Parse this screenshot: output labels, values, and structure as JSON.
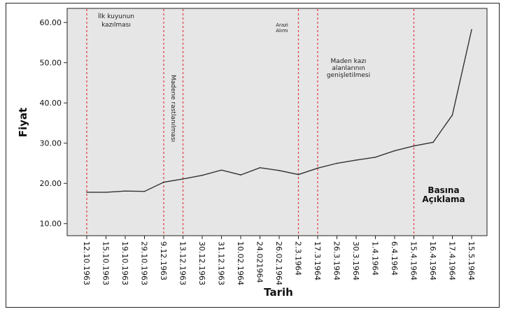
{
  "chart_data": {
    "type": "line",
    "title": "",
    "xlabel": "Tarih",
    "ylabel": "Fiyat",
    "ylim": [
      7,
      63.5
    ],
    "yticks": [
      "10.00",
      "20.00",
      "30.00",
      "40.00",
      "50.00",
      "60.00"
    ],
    "categories": [
      "12.10.1963",
      "15.10.1963",
      "19.10.1963",
      "29.10.1963",
      "9.12.1963",
      "13.12.1963",
      "30.12.1963",
      "31.12.1963",
      "10.02.1964",
      "24.021964",
      "26.02.1964",
      "2.3.1964",
      "17.3.1964",
      "26.3.1964",
      "30.3.1964",
      "1.4.1964",
      "6.4.1964",
      "15.4.1964",
      "16.4.1964",
      "17.4.1964",
      "15.5.1964"
    ],
    "series": [
      {
        "values": [
          17.8,
          17.8,
          18.1,
          18.0,
          20.3,
          21.1,
          22.0,
          23.3,
          22.1,
          23.9,
          23.2,
          22.2,
          23.8,
          25.0,
          25.8,
          26.5,
          28.1,
          29.3,
          30.2,
          37.0,
          58.2
        ],
        "color": "#333333"
      }
    ],
    "vlines_at_category": [
      "12.10.1963",
      "9.12.1963",
      "13.12.1963",
      "2.3.1964",
      "17.3.1964",
      "15.4.1964"
    ],
    "vline_color": "#e0454d",
    "annotations": {
      "first_well": [
        "İlk kuyunun",
        "kazılması"
      ],
      "mine_found": "Madene rastlanılması",
      "land_purchase": [
        "Arazi",
        "Alımı"
      ],
      "mine_expansion": [
        "Maden kazı",
        "alanlarının",
        "genişletilmesi"
      ],
      "press_release": [
        "Basına",
        "Açıklama"
      ]
    },
    "plot_background": "#e6e6e6",
    "grid": false,
    "legend": "none"
  }
}
